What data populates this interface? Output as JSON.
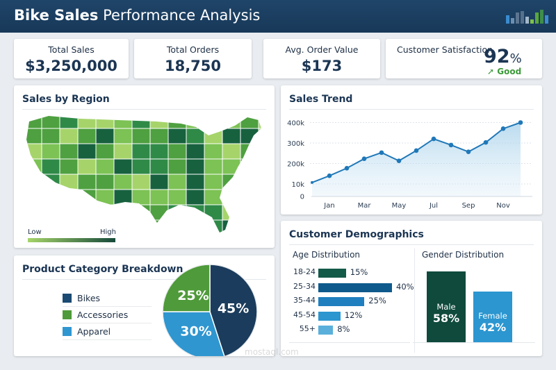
{
  "header": {
    "title_bold": "Bike Sales",
    "title_rest": "Performance Analysis",
    "logo_colors": [
      "#3a8ccf",
      "#6a8fb0",
      "#5c7590",
      "#56708b",
      "#a3b8cb",
      "#7ec24a",
      "#5aa83a",
      "#3f8e4a"
    ]
  },
  "kpis": [
    {
      "label": "Total Sales",
      "value": "$3,250,000"
    },
    {
      "label": "Total Orders",
      "value": "18,750"
    },
    {
      "label": "Avg. Order Value",
      "value": "$173"
    },
    {
      "label": "Customer Satisfaction",
      "value": "92",
      "unit": "%",
      "status": "Good",
      "status_color": "#3c9a3a"
    }
  ],
  "region": {
    "title": "Sales by Region",
    "legend_low": "Low",
    "legend_high": "High",
    "colors": [
      "#a6d46a",
      "#7cc254",
      "#4fa040",
      "#2f8a48",
      "#17613f"
    ]
  },
  "trend": {
    "title": "Sales Trend",
    "color": "#1f78b8"
  },
  "chart_data": [
    {
      "type": "area",
      "title": "Sales Trend",
      "x_tick_labels": [
        "Jan",
        "Mar",
        "May",
        "Jul",
        "Sep",
        "Nov"
      ],
      "y_tick_labels": [
        "400k",
        "300k",
        "200k",
        "10k",
        "0"
      ],
      "values": [
        107000,
        140000,
        177000,
        223000,
        253000,
        213000,
        263000,
        320000,
        290000,
        257000,
        303000,
        370000,
        400000
      ],
      "grid": true
    },
    {
      "type": "pie",
      "title": "Product Category Breakdown",
      "categories": [
        "Bikes",
        "Apparel",
        "Accessories"
      ],
      "values": [
        45,
        30,
        25
      ],
      "colors": [
        "#1b3c5c",
        "#2f96d0",
        "#4f9a3a"
      ]
    },
    {
      "type": "bar",
      "title": "Age Distribution",
      "categories": [
        "18-24",
        "25-34",
        "35-44",
        "45-54",
        "55+"
      ],
      "values": [
        15,
        40,
        25,
        12,
        8
      ],
      "colors": [
        "#145a48",
        "#0f5a8c",
        "#1f7fbf",
        "#2b96d0",
        "#5ab0db"
      ]
    },
    {
      "type": "bar",
      "title": "Gender Distribution",
      "categories": [
        "Male",
        "Female"
      ],
      "values": [
        58,
        42
      ],
      "colors": [
        "#0f4a3c",
        "#2b96d0"
      ]
    }
  ],
  "product": {
    "title": "Product Category Breakdown",
    "legend": [
      {
        "label": "Bikes",
        "color": "#1b4a72"
      },
      {
        "label": "Accessories",
        "color": "#4f9a3a"
      },
      {
        "label": "Apparel",
        "color": "#2f96d0"
      }
    ],
    "labels": [
      "45%",
      "30%",
      "25%"
    ]
  },
  "demo": {
    "title": "Customer Demographics",
    "age_title": "Age Distribution",
    "gender_title": "Gender Distribution",
    "ages": [
      {
        "label": "18-24",
        "pct": "15%"
      },
      {
        "label": "25-34",
        "pct": "40%"
      },
      {
        "label": "35-44",
        "pct": "25%"
      },
      {
        "label": "45-54",
        "pct": "12%"
      },
      {
        "label": "55+",
        "pct": "8%"
      }
    ],
    "genders": [
      {
        "label": "Male",
        "pct": "58%"
      },
      {
        "label": "Female",
        "pct": "42%"
      }
    ]
  },
  "watermark": {
    "text": "mostaql.com"
  }
}
